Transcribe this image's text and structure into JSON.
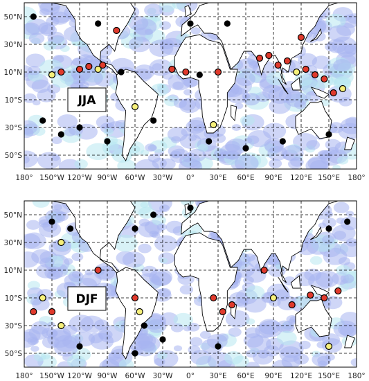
{
  "maps": [
    {
      "season_label": "JJA",
      "lat_labels": [
        "50°N",
        "30°N",
        "10°N",
        "10°S",
        "30°S",
        "50°S"
      ],
      "lon_labels": [
        "180°",
        "150°W",
        "120°W",
        "90°W",
        "60°W",
        "30°W",
        "0°",
        "30°E",
        "60°E",
        "90°E",
        "120°E",
        "150°E",
        "180°"
      ],
      "markers": [
        {
          "lon": -150,
          "lat": 8,
          "c": "yellow"
        },
        {
          "lon": -140,
          "lat": 10,
          "c": "red"
        },
        {
          "lon": -120,
          "lat": 12,
          "c": "red"
        },
        {
          "lon": -110,
          "lat": 14,
          "c": "red"
        },
        {
          "lon": -100,
          "lat": 12,
          "c": "yellow"
        },
        {
          "lon": -95,
          "lat": 15,
          "c": "red"
        },
        {
          "lon": -75,
          "lat": 10,
          "c": "black"
        },
        {
          "lon": -20,
          "lat": 12,
          "c": "red"
        },
        {
          "lon": -5,
          "lat": 10,
          "c": "red"
        },
        {
          "lon": 10,
          "lat": 8,
          "c": "black"
        },
        {
          "lon": 30,
          "lat": 10,
          "c": "red"
        },
        {
          "lon": 75,
          "lat": 20,
          "c": "red"
        },
        {
          "lon": 85,
          "lat": 22,
          "c": "red"
        },
        {
          "lon": 95,
          "lat": 15,
          "c": "red"
        },
        {
          "lon": 105,
          "lat": 18,
          "c": "red"
        },
        {
          "lon": 115,
          "lat": 10,
          "c": "yellow"
        },
        {
          "lon": 125,
          "lat": 12,
          "c": "red"
        },
        {
          "lon": 135,
          "lat": 8,
          "c": "red"
        },
        {
          "lon": 145,
          "lat": 5,
          "c": "red"
        },
        {
          "lon": 155,
          "lat": -5,
          "c": "red"
        },
        {
          "lon": 165,
          "lat": -2,
          "c": "yellow"
        },
        {
          "lon": -160,
          "lat": -25,
          "c": "black"
        },
        {
          "lon": -140,
          "lat": -35,
          "c": "black"
        },
        {
          "lon": -120,
          "lat": -30,
          "c": "black"
        },
        {
          "lon": -90,
          "lat": -40,
          "c": "black"
        },
        {
          "lon": -40,
          "lat": -25,
          "c": "black"
        },
        {
          "lon": 20,
          "lat": -40,
          "c": "black"
        },
        {
          "lon": 60,
          "lat": -45,
          "c": "black"
        },
        {
          "lon": 100,
          "lat": -40,
          "c": "black"
        },
        {
          "lon": 150,
          "lat": -35,
          "c": "black"
        },
        {
          "lon": -60,
          "lat": -15,
          "c": "yellow"
        },
        {
          "lon": 25,
          "lat": -28,
          "c": "yellow"
        },
        {
          "lon": 40,
          "lat": 45,
          "c": "black"
        },
        {
          "lon": -80,
          "lat": 40,
          "c": "red"
        },
        {
          "lon": -100,
          "lat": 45,
          "c": "black"
        },
        {
          "lon": 120,
          "lat": 35,
          "c": "red"
        },
        {
          "lon": 0,
          "lat": 45,
          "c": "black"
        },
        {
          "lon": -170,
          "lat": 50,
          "c": "black"
        }
      ]
    },
    {
      "season_label": "DJF",
      "lat_labels": [
        "50°N",
        "30°N",
        "10°N",
        "10°S",
        "30°S",
        "50°S"
      ],
      "lon_labels": [
        "180°",
        "150°W",
        "120°W",
        "90°W",
        "60°W",
        "30°W",
        "0°",
        "30°E",
        "60°E",
        "90°E",
        "120°E",
        "150°E",
        "180°"
      ],
      "markers": [
        {
          "lon": -170,
          "lat": -20,
          "c": "red"
        },
        {
          "lon": -160,
          "lat": -10,
          "c": "yellow"
        },
        {
          "lon": -150,
          "lat": -20,
          "c": "red"
        },
        {
          "lon": -140,
          "lat": -30,
          "c": "yellow"
        },
        {
          "lon": -60,
          "lat": -10,
          "c": "red"
        },
        {
          "lon": -55,
          "lat": -20,
          "c": "yellow"
        },
        {
          "lon": -50,
          "lat": -30,
          "c": "black"
        },
        {
          "lon": 25,
          "lat": -10,
          "c": "red"
        },
        {
          "lon": 35,
          "lat": -20,
          "c": "red"
        },
        {
          "lon": 45,
          "lat": -15,
          "c": "red"
        },
        {
          "lon": 90,
          "lat": -10,
          "c": "yellow"
        },
        {
          "lon": 110,
          "lat": -15,
          "c": "red"
        },
        {
          "lon": 130,
          "lat": -8,
          "c": "red"
        },
        {
          "lon": 145,
          "lat": -10,
          "c": "red"
        },
        {
          "lon": 160,
          "lat": -5,
          "c": "red"
        },
        {
          "lon": -150,
          "lat": 45,
          "c": "black"
        },
        {
          "lon": -130,
          "lat": 40,
          "c": "black"
        },
        {
          "lon": -60,
          "lat": 40,
          "c": "black"
        },
        {
          "lon": -40,
          "lat": 50,
          "c": "black"
        },
        {
          "lon": 150,
          "lat": 40,
          "c": "black"
        },
        {
          "lon": 170,
          "lat": 45,
          "c": "black"
        },
        {
          "lon": -140,
          "lat": 30,
          "c": "yellow"
        },
        {
          "lon": -100,
          "lat": 10,
          "c": "red"
        },
        {
          "lon": 80,
          "lat": 10,
          "c": "red"
        },
        {
          "lon": -30,
          "lat": -40,
          "c": "black"
        },
        {
          "lon": -60,
          "lat": -50,
          "c": "black"
        },
        {
          "lon": 30,
          "lat": -45,
          "c": "black"
        },
        {
          "lon": 150,
          "lat": -45,
          "c": "yellow"
        },
        {
          "lon": -120,
          "lat": -45,
          "c": "black"
        },
        {
          "lon": 0,
          "lat": 55,
          "c": "black"
        }
      ]
    }
  ],
  "colors": {
    "ocean_band": "#a8b4f0",
    "ocean_band_light": "#b8e8f0",
    "land_line": "#000000",
    "grid": "#000000",
    "red": "#e03a2c",
    "yellow": "#f6f07a",
    "black": "#000000"
  }
}
